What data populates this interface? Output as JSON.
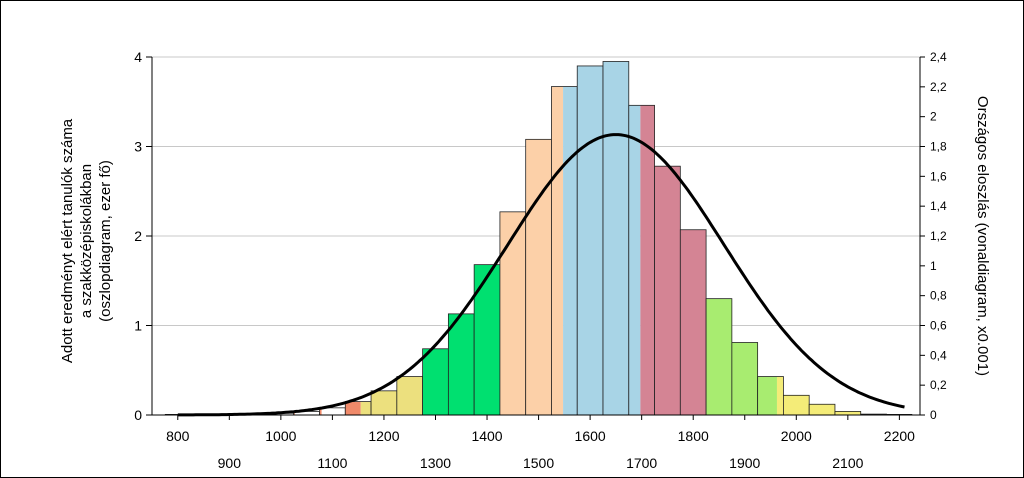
{
  "chart_data": {
    "type": "bar",
    "title": "",
    "ylabel_left": [
      "Adott eredményt elért tanulók száma",
      "a szakközépiskolákban",
      "(oszlopdiagram, ezer fő)"
    ],
    "ylabel_right": "Országos eloszlás (vonaldiagram, x0.001)",
    "xlabel": "",
    "x_ticks_top": [
      "800",
      "1000",
      "1200",
      "1400",
      "1600",
      "1800",
      "2000",
      "2200"
    ],
    "x_ticks_bottom": [
      "900",
      "1100",
      "1300",
      "1500",
      "1700",
      "1900",
      "2100"
    ],
    "xlim": [
      750,
      2240
    ],
    "ylim_left": [
      0,
      4
    ],
    "y_ticks_left": [
      "0",
      "1",
      "2",
      "3",
      "4"
    ],
    "ylim_right": [
      0,
      2.4
    ],
    "y_ticks_right": [
      "0",
      "0,2",
      "0,4",
      "0,6",
      "0,8",
      "1",
      "1,2",
      "1,4",
      "1,6",
      "1,8",
      "2",
      "2,2",
      "2,4"
    ],
    "grid": "horizontal",
    "bar_width": 50,
    "bars": [
      {
        "x": 800,
        "value": 0.0,
        "segments": [
          {
            "to": 0.0,
            "color": "#f08a6a"
          }
        ]
      },
      {
        "x": 850,
        "value": 0.0,
        "segments": [
          {
            "to": 0.0,
            "color": "#f08a6a"
          }
        ]
      },
      {
        "x": 900,
        "value": 0.0,
        "segments": [
          {
            "to": 0.0,
            "color": "#f08a6a"
          }
        ]
      },
      {
        "x": 950,
        "value": 0.01,
        "segments": [
          {
            "to": 0.01,
            "color": "#f08a6a"
          }
        ]
      },
      {
        "x": 1000,
        "value": 0.02,
        "segments": [
          {
            "to": 0.02,
            "color": "#f08a6a"
          }
        ]
      },
      {
        "x": 1050,
        "value": 0.04,
        "segments": [
          {
            "to": 0.04,
            "color": "#f08a6a"
          }
        ]
      },
      {
        "x": 1100,
        "value": 0.08,
        "segments": [
          {
            "to": 0.08,
            "color": "#f08a6a"
          }
        ]
      },
      {
        "x": 1150,
        "value": 0.15,
        "segments": [
          {
            "to": 0.6,
            "color": "#f08a6a"
          },
          {
            "to": 1.0,
            "color": "#ece07e"
          }
        ]
      },
      {
        "x": 1200,
        "value": 0.27,
        "segments": [
          {
            "to": 1.0,
            "color": "#ece07e"
          }
        ]
      },
      {
        "x": 1250,
        "value": 0.43,
        "segments": [
          {
            "to": 1.0,
            "color": "#ece07e"
          }
        ]
      },
      {
        "x": 1300,
        "value": 0.74,
        "segments": [
          {
            "to": 1.0,
            "color": "#00e070"
          }
        ]
      },
      {
        "x": 1350,
        "value": 1.13,
        "segments": [
          {
            "to": 1.0,
            "color": "#00e070"
          }
        ]
      },
      {
        "x": 1400,
        "value": 1.68,
        "segments": [
          {
            "to": 1.0,
            "color": "#00e070"
          }
        ]
      },
      {
        "x": 1450,
        "value": 2.27,
        "segments": [
          {
            "to": 1.0,
            "color": "#fcd0a8"
          }
        ]
      },
      {
        "x": 1500,
        "value": 3.08,
        "segments": [
          {
            "to": 1.0,
            "color": "#fcd0a8"
          }
        ]
      },
      {
        "x": 1550,
        "value": 3.67,
        "segments": [
          {
            "to": 0.45,
            "color": "#fcd0a8"
          },
          {
            "to": 1.0,
            "color": "#a8d4e6"
          }
        ]
      },
      {
        "x": 1600,
        "value": 3.9,
        "segments": [
          {
            "to": 1.0,
            "color": "#a8d4e6"
          }
        ]
      },
      {
        "x": 1650,
        "value": 3.95,
        "segments": [
          {
            "to": 1.0,
            "color": "#a8d4e6"
          }
        ]
      },
      {
        "x": 1700,
        "value": 3.46,
        "segments": [
          {
            "to": 0.45,
            "color": "#a8d4e6"
          },
          {
            "to": 1.0,
            "color": "#d48494"
          }
        ]
      },
      {
        "x": 1750,
        "value": 2.78,
        "segments": [
          {
            "to": 1.0,
            "color": "#d48494"
          }
        ]
      },
      {
        "x": 1800,
        "value": 2.07,
        "segments": [
          {
            "to": 1.0,
            "color": "#d48494"
          }
        ]
      },
      {
        "x": 1850,
        "value": 1.3,
        "segments": [
          {
            "to": 1.0,
            "color": "#a8ec70"
          }
        ]
      },
      {
        "x": 1900,
        "value": 0.81,
        "segments": [
          {
            "to": 1.0,
            "color": "#a8ec70"
          }
        ]
      },
      {
        "x": 1950,
        "value": 0.43,
        "segments": [
          {
            "to": 0.75,
            "color": "#a8ec70"
          },
          {
            "to": 1.0,
            "color": "#f4ec78"
          }
        ]
      },
      {
        "x": 2000,
        "value": 0.22,
        "segments": [
          {
            "to": 1.0,
            "color": "#f4ec78"
          }
        ]
      },
      {
        "x": 2050,
        "value": 0.12,
        "segments": [
          {
            "to": 1.0,
            "color": "#f4ec78"
          }
        ]
      },
      {
        "x": 2100,
        "value": 0.04,
        "segments": [
          {
            "to": 1.0,
            "color": "#f4ec78"
          }
        ]
      },
      {
        "x": 2150,
        "value": 0.01,
        "segments": [
          {
            "to": 1.0,
            "color": "#f4ec78"
          }
        ]
      },
      {
        "x": 2200,
        "value": 0.0,
        "segments": [
          {
            "to": 1.0,
            "color": "#f4ec78"
          }
        ]
      }
    ],
    "curve": {
      "axis": "right",
      "type": "normal",
      "mean": 1650,
      "sd": 210,
      "peak": 1.88,
      "x_range": [
        800,
        2210
      ],
      "color": "#000000"
    }
  }
}
